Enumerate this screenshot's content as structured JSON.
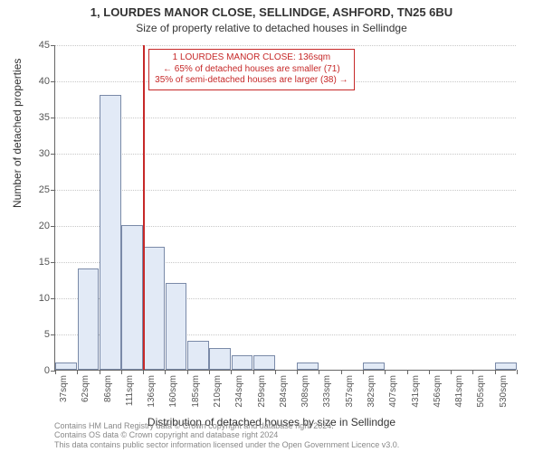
{
  "title_main": "1, LOURDES MANOR CLOSE, SELLINDGE, ASHFORD, TN25 6BU",
  "title_sub": "Size of property relative to detached houses in Sellindge",
  "y_axis_title": "Number of detached properties",
  "x_axis_title": "Distribution of detached houses by size in Sellindge",
  "chart": {
    "type": "histogram",
    "background_color": "#ffffff",
    "grid_color": "#c8c8c8",
    "axis_color": "#666666",
    "bar_fill": "#e2eaf6",
    "bar_border": "#7a8aa8",
    "marker_color": "#c62828",
    "ylim": [
      0,
      45
    ],
    "ytick_step": 5,
    "x_labels": [
      "37sqm",
      "62sqm",
      "86sqm",
      "111sqm",
      "136sqm",
      "160sqm",
      "185sqm",
      "210sqm",
      "234sqm",
      "259sqm",
      "284sqm",
      "308sqm",
      "333sqm",
      "357sqm",
      "382sqm",
      "407sqm",
      "431sqm",
      "456sqm",
      "481sqm",
      "505sqm",
      "530sqm"
    ],
    "values": [
      1,
      14,
      38,
      20,
      17,
      12,
      4,
      3,
      2,
      2,
      0,
      1,
      0,
      0,
      1,
      0,
      0,
      0,
      0,
      0,
      1
    ],
    "marker_after_index": 3,
    "title_fontsize": 13,
    "label_fontsize": 12,
    "tick_fontsize": 11,
    "x_tick_fontsize": 10
  },
  "annotation": {
    "line1": "1 LOURDES MANOR CLOSE: 136sqm",
    "line2": "← 65% of detached houses are smaller (71)",
    "line3": "35% of semi-detached houses are larger (38) →"
  },
  "footer_line1": "Contains HM Land Registry data © Crown copyright and database right 2024.",
  "footer_line2": "Contains OS data © Crown copyright and database right 2024",
  "footer_line3": "This data contains public sector information licensed under the Open Government Licence v3.0."
}
